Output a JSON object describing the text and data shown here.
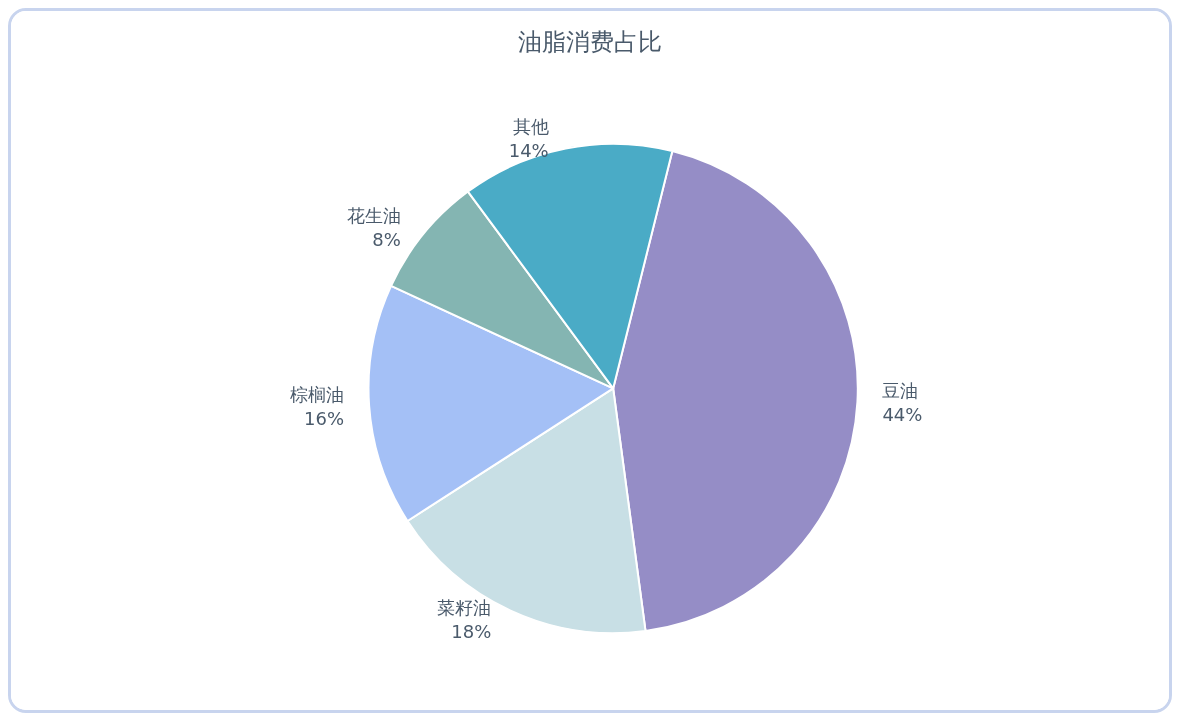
{
  "chart_data": {
    "type": "pie",
    "title": "油脂消费占比",
    "categories": [
      "豆油",
      "菜籽油",
      "棕榈油",
      "花生油",
      "其他"
    ],
    "values": [
      44,
      18,
      16,
      8,
      14
    ],
    "colors": [
      "#958dc6",
      "#c8dfe5",
      "#a4c0f6",
      "#84b5b2",
      "#4aabc6"
    ],
    "value_labels": [
      "44%",
      "18%",
      "16%",
      "8%",
      "14%"
    ],
    "legend": false
  }
}
